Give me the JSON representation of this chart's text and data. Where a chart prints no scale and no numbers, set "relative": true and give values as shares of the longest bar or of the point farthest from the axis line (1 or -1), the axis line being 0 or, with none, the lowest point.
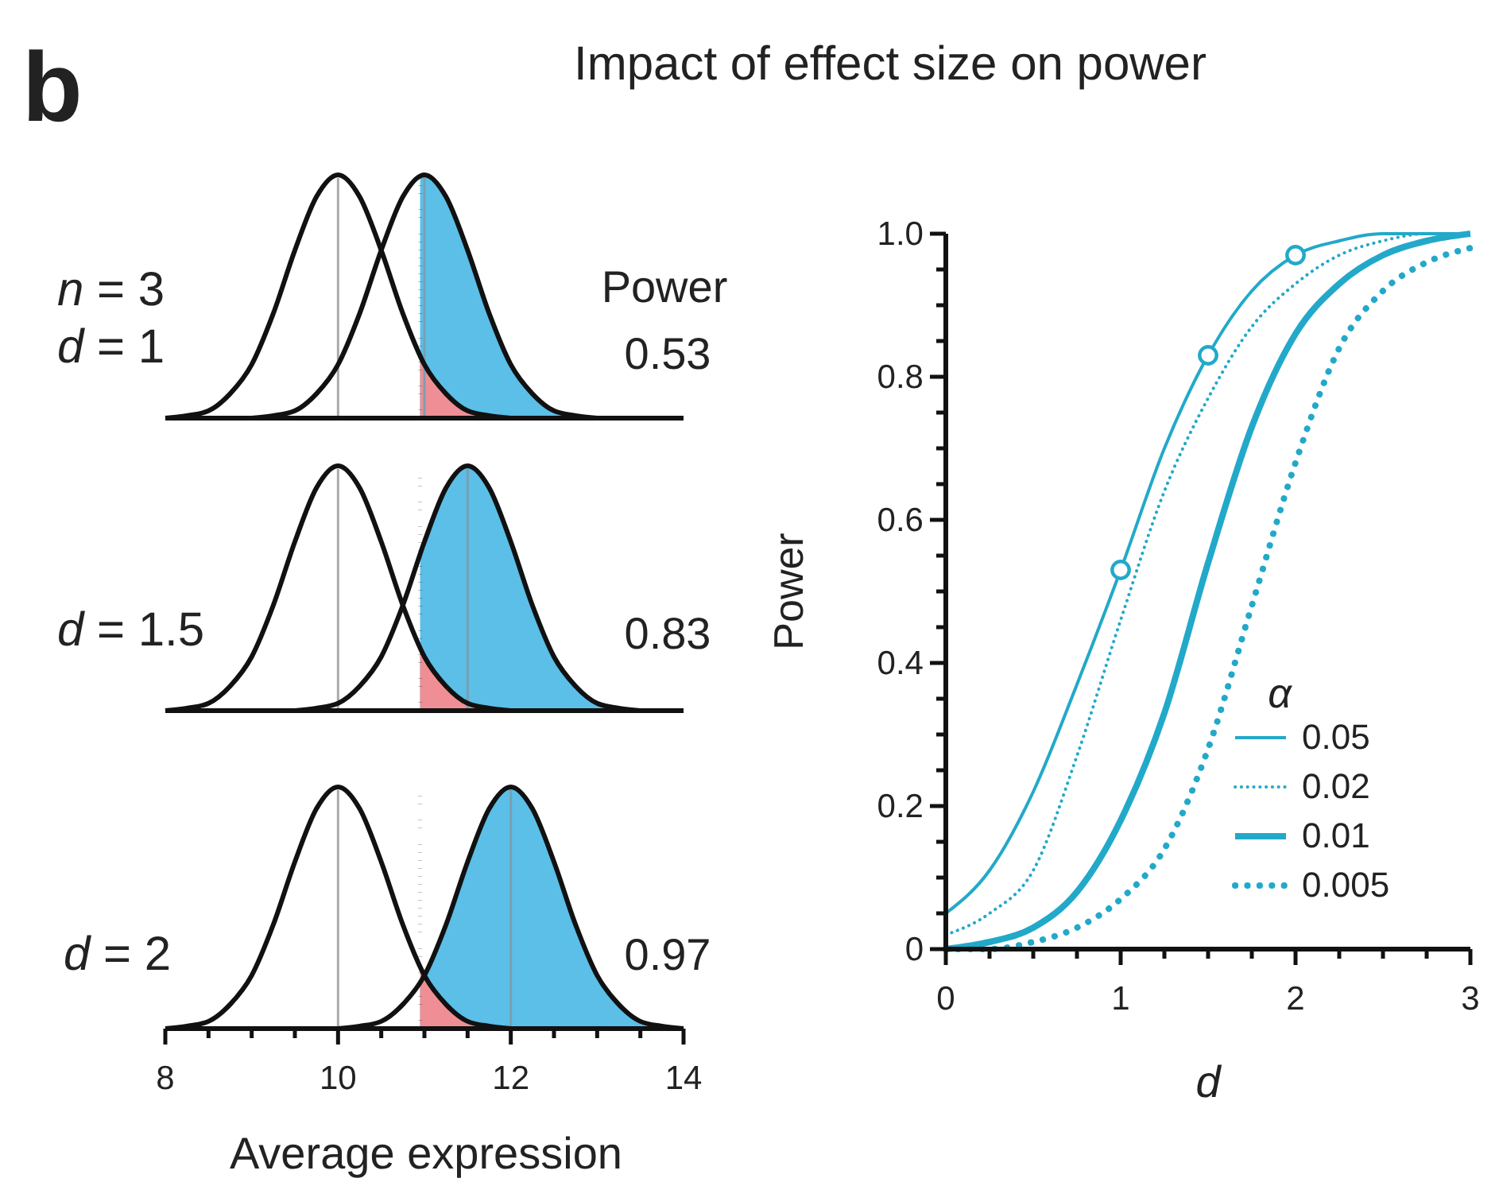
{
  "chart_data": [
    {
      "type": "line",
      "title": "Impact of effect size on power",
      "relative": true,
      "xlim": [
        8,
        14
      ],
      "tick_labels": false,
      "annotations": [
        "b",
        "n = 3",
        "d = 1",
        "Power",
        "0.53"
      ],
      "series": [
        {
          "type": "area",
          "color": "#5bbfe8",
          "x": [
            10.95,
            11,
            11.25,
            11.5,
            11.75,
            12,
            12.25,
            12.5,
            12.75,
            13,
            13.25,
            13.5,
            13.75,
            14
          ],
          "values": [
            1,
            1,
            0.91,
            0.69,
            0.43,
            0.22,
            0.1,
            0.03,
            0.01,
            0,
            0,
            0,
            0,
            0
          ]
        },
        {
          "type": "area",
          "color": "#ef8f95",
          "x": [
            10.95,
            11,
            11.25,
            11.5,
            11.75,
            12
          ],
          "values": [
            0.26,
            0.22,
            0.1,
            0.03,
            0.01,
            0
          ]
        },
        {
          "color": "#111111",
          "x": [
            8,
            8.25,
            8.5,
            8.75,
            9,
            9.25,
            9.5,
            9.75,
            10,
            10.25,
            10.5,
            10.75,
            11,
            11.25,
            11.5,
            11.75,
            12
          ],
          "values": [
            0,
            0.01,
            0.03,
            0.1,
            0.22,
            0.43,
            0.69,
            0.91,
            1,
            0.91,
            0.69,
            0.43,
            0.22,
            0.1,
            0.03,
            0.01,
            0
          ]
        },
        {
          "color": "#111111",
          "x": [
            9,
            9.25,
            9.5,
            9.75,
            10,
            10.25,
            10.5,
            10.75,
            11,
            11.25,
            11.5,
            11.75,
            12,
            12.25,
            12.5,
            12.75,
            13
          ],
          "values": [
            0,
            0.01,
            0.03,
            0.1,
            0.22,
            0.43,
            0.69,
            0.91,
            1,
            0.91,
            0.69,
            0.43,
            0.22,
            0.1,
            0.03,
            0.01,
            0
          ]
        }
      ],
      "ref_lines": [
        {
          "axis": "x",
          "value": 10,
          "color": "#aaaaaa",
          "line_style": "solid"
        },
        {
          "axis": "x",
          "value": 11,
          "color": "#7a9fb0",
          "line_style": "solid"
        },
        {
          "axis": "x",
          "value": 10.95,
          "color": "#111111",
          "line_style": "dotted"
        }
      ]
    },
    {
      "type": "line",
      "relative": true,
      "xlim": [
        8,
        14
      ],
      "tick_labels": false,
      "annotations": [
        "d = 1.5",
        "0.83"
      ],
      "series": [
        {
          "type": "area",
          "color": "#5bbfe8",
          "x": [
            10.95,
            11,
            11.25,
            11.5,
            11.75,
            12,
            12.25,
            12.5,
            12.75,
            13,
            13.25,
            13.5,
            13.75,
            14
          ],
          "values": [
            0.64,
            0.69,
            0.91,
            1,
            0.91,
            0.69,
            0.43,
            0.22,
            0.1,
            0.03,
            0.01,
            0,
            0,
            0
          ]
        },
        {
          "type": "area",
          "color": "#ef8f95",
          "x": [
            10.95,
            11,
            11.25,
            11.5,
            11.75,
            12
          ],
          "values": [
            0.26,
            0.22,
            0.1,
            0.03,
            0.01,
            0
          ]
        },
        {
          "color": "#111111",
          "x": [
            8,
            8.25,
            8.5,
            8.75,
            9,
            9.25,
            9.5,
            9.75,
            10,
            10.25,
            10.5,
            10.75,
            11,
            11.25,
            11.5,
            11.75,
            12
          ],
          "values": [
            0,
            0.01,
            0.03,
            0.1,
            0.22,
            0.43,
            0.69,
            0.91,
            1,
            0.91,
            0.69,
            0.43,
            0.22,
            0.1,
            0.03,
            0.01,
            0
          ]
        },
        {
          "color": "#111111",
          "x": [
            9.5,
            9.75,
            10,
            10.25,
            10.5,
            10.75,
            11,
            11.25,
            11.5,
            11.75,
            12,
            12.25,
            12.5,
            12.75,
            13,
            13.25,
            13.5
          ],
          "values": [
            0,
            0.01,
            0.03,
            0.1,
            0.22,
            0.43,
            0.69,
            0.91,
            1,
            0.91,
            0.69,
            0.43,
            0.22,
            0.1,
            0.03,
            0.01,
            0
          ]
        }
      ],
      "ref_lines": [
        {
          "axis": "x",
          "value": 10,
          "color": "#aaaaaa",
          "line_style": "solid"
        },
        {
          "axis": "x",
          "value": 11.5,
          "color": "#7a9fb0",
          "line_style": "solid"
        },
        {
          "axis": "x",
          "value": 10.95,
          "color": "#111111",
          "line_style": "dotted"
        }
      ]
    },
    {
      "type": "line",
      "relative": true,
      "xlim": [
        8,
        14
      ],
      "tick_labels": "x",
      "xlabel": "Average expression",
      "annotations": [
        "d = 2",
        "0.97"
      ],
      "xticks": [
        8,
        {
          "value": 8.5,
          "label": null
        },
        {
          "value": 9,
          "label": null
        },
        {
          "value": 9.5,
          "label": null
        },
        10,
        {
          "value": 10.5,
          "label": null
        },
        {
          "value": 11,
          "label": null
        },
        {
          "value": 11.5,
          "label": null
        },
        12,
        {
          "value": 12.5,
          "label": null
        },
        {
          "value": 13,
          "label": null
        },
        {
          "value": 13.5,
          "label": null
        },
        14
      ],
      "series": [
        {
          "type": "area",
          "color": "#5bbfe8",
          "x": [
            10.95,
            11,
            11.25,
            11.5,
            11.75,
            12,
            12.25,
            12.5,
            12.75,
            13,
            13.25,
            13.5,
            13.75,
            14
          ],
          "values": [
            0.19,
            0.22,
            0.43,
            0.69,
            0.91,
            1,
            0.91,
            0.69,
            0.43,
            0.22,
            0.1,
            0.03,
            0.01,
            0
          ]
        },
        {
          "type": "area",
          "color": "#ef8f95",
          "x": [
            10.95,
            11,
            11.25,
            11.5,
            11.75,
            12
          ],
          "values": [
            0.26,
            0.22,
            0.1,
            0.03,
            0.01,
            0
          ]
        },
        {
          "color": "#111111",
          "x": [
            8,
            8.25,
            8.5,
            8.75,
            9,
            9.25,
            9.5,
            9.75,
            10,
            10.25,
            10.5,
            10.75,
            11,
            11.25,
            11.5,
            11.75,
            12
          ],
          "values": [
            0,
            0.01,
            0.03,
            0.1,
            0.22,
            0.43,
            0.69,
            0.91,
            1,
            0.91,
            0.69,
            0.43,
            0.22,
            0.1,
            0.03,
            0.01,
            0
          ]
        },
        {
          "color": "#111111",
          "x": [
            10,
            10.25,
            10.5,
            10.75,
            11,
            11.25,
            11.5,
            11.75,
            12,
            12.25,
            12.5,
            12.75,
            13,
            13.25,
            13.5,
            13.75,
            14
          ],
          "values": [
            0,
            0.01,
            0.03,
            0.1,
            0.22,
            0.43,
            0.69,
            0.91,
            1,
            0.91,
            0.69,
            0.43,
            0.22,
            0.1,
            0.03,
            0.01,
            0
          ]
        }
      ],
      "ref_lines": [
        {
          "axis": "x",
          "value": 10,
          "color": "#aaaaaa",
          "line_style": "solid"
        },
        {
          "axis": "x",
          "value": 12,
          "color": "#7a9fb0",
          "line_style": "solid"
        },
        {
          "axis": "x",
          "value": 10.95,
          "color": "#111111",
          "line_style": "dotted"
        }
      ]
    },
    {
      "type": "line",
      "xlabel": "d",
      "ylabel": "Power",
      "legend_title": "α",
      "legend": "bottom right",
      "grid": false,
      "xlim": [
        0,
        3
      ],
      "ylim": [
        0,
        1
      ],
      "xticks": [
        0,
        {
          "value": 0.25,
          "label": null
        },
        {
          "value": 0.5,
          "label": null
        },
        {
          "value": 0.75,
          "label": null
        },
        1,
        {
          "value": 1.25,
          "label": null
        },
        {
          "value": 1.5,
          "label": null
        },
        {
          "value": 1.75,
          "label": null
        },
        2,
        {
          "value": 2.25,
          "label": null
        },
        {
          "value": 2.5,
          "label": null
        },
        {
          "value": 2.75,
          "label": null
        },
        3
      ],
      "yticks": [
        0,
        {
          "value": 0.05,
          "label": null
        },
        {
          "value": 0.1,
          "label": null
        },
        {
          "value": 0.15,
          "label": null
        },
        0.2,
        {
          "value": 0.25,
          "label": null
        },
        {
          "value": 0.3,
          "label": null
        },
        {
          "value": 0.35,
          "label": null
        },
        0.4,
        {
          "value": 0.45,
          "label": null
        },
        {
          "value": 0.5,
          "label": null
        },
        {
          "value": 0.55,
          "label": null
        },
        0.6,
        {
          "value": 0.65,
          "label": null
        },
        {
          "value": 0.7,
          "label": null
        },
        {
          "value": 0.75,
          "label": null
        },
        0.8,
        {
          "value": 0.85,
          "label": null
        },
        {
          "value": 0.9,
          "label": null
        },
        {
          "value": 0.95,
          "label": null
        },
        {
          "value": 1,
          "label": "1.0"
        }
      ],
      "x": [
        0,
        0.25,
        0.5,
        0.75,
        1,
        1.25,
        1.5,
        1.75,
        2,
        2.25,
        2.5,
        2.75,
        3
      ],
      "series": [
        {
          "name": "0.05",
          "color": "#22a9c9",
          "line_style": "solid",
          "values": [
            0.05,
            0.11,
            0.22,
            0.37,
            0.53,
            0.7,
            0.83,
            0.92,
            0.97,
            0.99,
            1,
            1,
            1
          ]
        },
        {
          "name": "0.02",
          "color": "#22a9c9",
          "line_style": "dotted",
          "values": [
            0.02,
            0.05,
            0.11,
            0.27,
            0.46,
            0.64,
            0.77,
            0.87,
            0.93,
            0.97,
            0.99,
            1,
            1
          ]
        },
        {
          "name": "0.01",
          "color": "#22a9c9",
          "line_style": "solid",
          "values": [
            0,
            0.01,
            0.03,
            0.08,
            0.18,
            0.33,
            0.54,
            0.73,
            0.86,
            0.93,
            0.97,
            0.99,
            1
          ]
        },
        {
          "name": "0.005",
          "color": "#22a9c9",
          "line_style": "dotted",
          "values": [
            0,
            0,
            0.01,
            0.03,
            0.07,
            0.14,
            0.28,
            0.48,
            0.68,
            0.84,
            0.92,
            0.96,
            0.98
          ]
        },
        {
          "type": "scatter",
          "color": "#22a9c9",
          "marker": "circle",
          "x": [
            1,
            1.5,
            2
          ],
          "values": [
            0.53,
            0.83,
            0.97
          ]
        }
      ]
    }
  ]
}
